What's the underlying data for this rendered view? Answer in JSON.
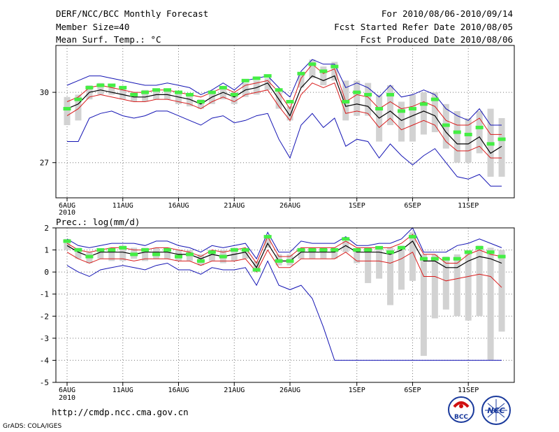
{
  "header": {
    "title": "DERF/NCC/BCC Monthly Forecast",
    "member_size": "Member Size=40",
    "variable_temp": "Mean Surf. Temp.: °C",
    "period": "For 2010/08/06-2010/09/14",
    "fcst_started": "Fcst Started Refer Date 2010/08/05",
    "fcst_produced": "Fcst Produced Date 2010/08/06"
  },
  "footer": {
    "url": "http://cmdp.ncc.cma.gov.cn",
    "grads": "GrADS: COLA/IGES",
    "logo_bcc": "BCC",
    "logo_ncc": "NCC"
  },
  "colors": {
    "box": "#d2d2d2",
    "mean": "#44ee44",
    "median": "#000000",
    "red_band": "#d81c1c",
    "blue_band": "#1414b4",
    "grid": "#777777"
  },
  "chart_data": [
    {
      "type": "line",
      "title": "Mean Surf. Temp.: °C",
      "days": 40,
      "x_tick_labels": [
        "6AUG",
        "11AUG",
        "16AUG",
        "21AUG",
        "26AUG",
        "1SEP",
        "6SEP",
        "11SEP"
      ],
      "x_tick_index": [
        0,
        5,
        10,
        15,
        20,
        26,
        31,
        36
      ],
      "x_sublabel": "2010",
      "ylim": [
        25.5,
        32
      ],
      "y_ticks": [
        27,
        30
      ],
      "series": [
        {
          "name": "blue_max",
          "values": [
            30.3,
            30.5,
            30.7,
            30.7,
            30.6,
            30.5,
            30.4,
            30.3,
            30.3,
            30.4,
            30.3,
            30.2,
            29.9,
            30.1,
            30.4,
            30.1,
            30.5,
            30.6,
            30.7,
            30.2,
            29.8,
            30.9,
            31.4,
            31.2,
            31.2,
            30.2,
            30.4,
            30.2,
            29.8,
            30.3,
            29.8,
            29.9,
            30.1,
            29.9,
            29.3,
            29.0,
            28.8,
            29.3,
            28.6,
            28.6
          ]
        },
        {
          "name": "red_upper",
          "values": [
            29.6,
            29.8,
            30.2,
            30.3,
            30.2,
            30.1,
            30.0,
            30.0,
            30.1,
            30.1,
            30.0,
            29.9,
            29.8,
            30.0,
            30.2,
            30.0,
            30.3,
            30.4,
            30.5,
            30.0,
            29.3,
            30.6,
            31.2,
            30.8,
            31.0,
            29.6,
            29.9,
            29.8,
            29.3,
            29.6,
            29.3,
            29.4,
            29.6,
            29.4,
            28.8,
            28.6,
            28.6,
            28.9,
            28.2,
            28.2
          ]
        },
        {
          "name": "median",
          "values": [
            29.3,
            29.5,
            30.0,
            30.1,
            30.0,
            29.9,
            29.8,
            29.8,
            29.9,
            29.9,
            29.8,
            29.7,
            29.5,
            29.8,
            30.0,
            29.8,
            30.1,
            30.2,
            30.4,
            29.7,
            29.0,
            30.2,
            30.7,
            30.5,
            30.7,
            29.4,
            29.5,
            29.4,
            28.9,
            29.2,
            28.8,
            29.0,
            29.2,
            29.0,
            28.3,
            27.8,
            27.8,
            28.1,
            27.4,
            27.7
          ]
        },
        {
          "name": "red_lower",
          "values": [
            29.0,
            29.3,
            29.8,
            29.9,
            29.8,
            29.7,
            29.6,
            29.6,
            29.7,
            29.7,
            29.6,
            29.5,
            29.3,
            29.6,
            29.8,
            29.6,
            29.9,
            30.0,
            30.1,
            29.4,
            28.8,
            29.9,
            30.4,
            30.2,
            30.4,
            29.1,
            29.2,
            29.1,
            28.5,
            28.9,
            28.4,
            28.6,
            28.8,
            28.6,
            27.9,
            27.5,
            27.5,
            27.7,
            27.2,
            27.2
          ]
        },
        {
          "name": "blue_min",
          "values": [
            27.9,
            27.9,
            28.9,
            29.1,
            29.2,
            29.0,
            28.9,
            29.0,
            29.2,
            29.2,
            29.0,
            28.8,
            28.6,
            28.9,
            29.0,
            28.7,
            28.8,
            29.0,
            29.1,
            28.0,
            27.2,
            28.6,
            29.1,
            28.5,
            28.9,
            27.7,
            28.0,
            27.9,
            27.2,
            27.8,
            27.3,
            26.9,
            27.3,
            27.6,
            27.0,
            26.4,
            26.3,
            26.5,
            26.0,
            26.0
          ]
        },
        {
          "name": "ensemble_mean",
          "values": [
            29.3,
            29.7,
            30.2,
            30.3,
            30.3,
            30.2,
            29.9,
            30.0,
            30.1,
            30.1,
            30.0,
            29.9,
            29.6,
            30.0,
            30.2,
            29.9,
            30.5,
            30.6,
            30.7,
            30.1,
            29.6,
            30.8,
            31.2,
            30.9,
            31.1,
            29.6,
            30.0,
            29.9,
            29.3,
            29.9,
            29.2,
            29.3,
            29.5,
            29.7,
            28.6,
            28.3,
            28.2,
            28.5,
            27.8,
            28.0
          ]
        },
        {
          "name": "box_high",
          "values": [
            29.8,
            29.9,
            30.3,
            30.4,
            30.3,
            30.2,
            30.0,
            30.1,
            30.1,
            30.1,
            30.0,
            29.9,
            29.7,
            30.0,
            30.2,
            30.0,
            30.4,
            30.5,
            30.6,
            30.0,
            29.4,
            30.8,
            31.4,
            31.1,
            31.3,
            30.5,
            30.5,
            30.4,
            29.9,
            30.3,
            29.6,
            29.9,
            30.0,
            30.0,
            29.5,
            29.2,
            28.9,
            29.2,
            29.3,
            28.9
          ]
        },
        {
          "name": "box_low",
          "values": [
            28.6,
            28.8,
            29.7,
            29.9,
            29.9,
            29.7,
            29.6,
            29.6,
            29.7,
            29.7,
            29.5,
            29.4,
            29.3,
            29.5,
            29.7,
            29.5,
            29.8,
            29.9,
            30.1,
            29.3,
            28.8,
            30.2,
            30.6,
            30.3,
            30.5,
            28.8,
            29.0,
            29.0,
            27.9,
            28.6,
            27.9,
            27.9,
            28.2,
            28.3,
            27.6,
            27.0,
            27.0,
            27.4,
            26.4,
            26.4
          ]
        }
      ]
    },
    {
      "type": "line",
      "title": "Prec.: log(mm/d)",
      "days": 40,
      "x_tick_labels": [
        "6AUG",
        "11AUG",
        "16AUG",
        "21AUG",
        "26AUG",
        "1SEP",
        "6SEP",
        "11SEP"
      ],
      "x_tick_index": [
        0,
        5,
        10,
        15,
        20,
        26,
        31,
        36
      ],
      "x_sublabel": "2010",
      "ylim": [
        -5,
        2
      ],
      "y_ticks": [
        -5,
        -4,
        -3,
        -2,
        -1,
        0,
        1,
        2
      ],
      "series": [
        {
          "name": "blue_max",
          "values": [
            1.5,
            1.2,
            1.1,
            1.2,
            1.3,
            1.3,
            1.3,
            1.2,
            1.4,
            1.4,
            1.2,
            1.1,
            0.9,
            1.2,
            1.1,
            1.2,
            1.3,
            0.6,
            1.8,
            0.9,
            0.9,
            1.4,
            1.3,
            1.3,
            1.3,
            1.6,
            1.2,
            1.2,
            1.3,
            1.3,
            1.5,
            2.0,
            0.9,
            0.9,
            0.9,
            1.2,
            1.3,
            1.5,
            1.3,
            1.1
          ]
        },
        {
          "name": "red_upper",
          "values": [
            1.3,
            1.0,
            0.9,
            1.0,
            1.1,
            1.1,
            1.0,
            1.0,
            1.1,
            1.1,
            1.0,
            0.9,
            0.7,
            1.0,
            0.9,
            1.0,
            1.1,
            0.4,
            1.6,
            0.7,
            0.7,
            1.1,
            1.1,
            1.1,
            1.1,
            1.4,
            1.1,
            1.1,
            1.1,
            1.1,
            1.3,
            1.7,
            0.8,
            0.8,
            0.4,
            0.4,
            0.8,
            1.0,
            0.8,
            0.7
          ]
        },
        {
          "name": "median",
          "values": [
            1.2,
            0.9,
            0.7,
            0.9,
            0.9,
            0.9,
            0.8,
            0.9,
            0.9,
            0.9,
            0.8,
            0.8,
            0.6,
            0.8,
            0.7,
            0.8,
            0.9,
            0.2,
            1.3,
            0.5,
            0.5,
            0.9,
            0.9,
            0.9,
            0.9,
            1.2,
            0.9,
            0.9,
            0.9,
            0.8,
            1.0,
            1.4,
            0.5,
            0.5,
            0.2,
            0.2,
            0.5,
            0.7,
            0.6,
            0.4
          ]
        },
        {
          "name": "red_lower",
          "values": [
            0.9,
            0.6,
            0.4,
            0.6,
            0.6,
            0.6,
            0.5,
            0.6,
            0.6,
            0.6,
            0.5,
            0.5,
            0.3,
            0.5,
            0.5,
            0.5,
            0.6,
            0.0,
            1.0,
            0.2,
            0.2,
            0.6,
            0.6,
            0.6,
            0.6,
            0.9,
            0.5,
            0.5,
            0.5,
            0.4,
            0.6,
            0.9,
            -0.2,
            -0.2,
            -0.4,
            -0.3,
            -0.2,
            -0.1,
            -0.2,
            -0.7
          ]
        },
        {
          "name": "blue_min",
          "values": [
            0.3,
            0.0,
            -0.2,
            0.1,
            0.2,
            0.3,
            0.2,
            0.1,
            0.3,
            0.4,
            0.1,
            0.1,
            -0.1,
            0.2,
            0.1,
            0.1,
            0.2,
            -0.6,
            0.5,
            -0.6,
            -0.8,
            -0.6,
            -1.2,
            -2.5,
            -4.0,
            -4.0,
            -4.0,
            -4.0,
            -4.0,
            -4.0,
            -4.0,
            -4.0,
            -4.0,
            -4.0,
            -4.0,
            -4.0,
            -4.0,
            -4.0,
            -4.0,
            -4.0
          ]
        },
        {
          "name": "ensemble_mean",
          "values": [
            1.4,
            1.0,
            0.7,
            1.0,
            1.0,
            1.1,
            0.8,
            1.0,
            0.8,
            1.0,
            0.7,
            0.8,
            0.5,
            0.9,
            0.7,
            1.0,
            1.0,
            0.1,
            1.6,
            0.5,
            0.5,
            1.0,
            1.0,
            1.0,
            1.0,
            1.5,
            1.0,
            1.0,
            1.1,
            0.9,
            1.1,
            1.6,
            0.6,
            0.6,
            0.6,
            0.6,
            0.9,
            1.1,
            0.9,
            0.7
          ]
        },
        {
          "name": "box_high",
          "values": [
            1.5,
            1.1,
            0.9,
            1.0,
            1.1,
            1.2,
            1.1,
            1.1,
            1.1,
            1.1,
            1.0,
            1.0,
            0.8,
            1.0,
            1.0,
            1.1,
            1.1,
            0.5,
            1.6,
            0.8,
            0.8,
            1.1,
            1.1,
            1.1,
            1.1,
            1.4,
            1.0,
            1.1,
            1.1,
            1.1,
            1.2,
            1.8,
            0.8,
            0.8,
            0.7,
            0.8,
            0.9,
            1.2,
            1.1,
            1.0
          ]
        },
        {
          "name": "box_low",
          "values": [
            1.0,
            0.6,
            0.4,
            0.6,
            0.5,
            0.5,
            0.6,
            0.5,
            0.6,
            0.6,
            0.5,
            0.5,
            0.3,
            0.5,
            0.4,
            0.5,
            0.6,
            0.0,
            1.1,
            0.3,
            0.3,
            0.6,
            0.6,
            0.6,
            0.6,
            0.9,
            0.4,
            -0.5,
            -0.3,
            -1.5,
            -0.8,
            -0.4,
            -3.8,
            -2.1,
            -1.7,
            -2.0,
            -2.2,
            -2.0,
            -4.0,
            -2.7
          ]
        }
      ]
    }
  ]
}
